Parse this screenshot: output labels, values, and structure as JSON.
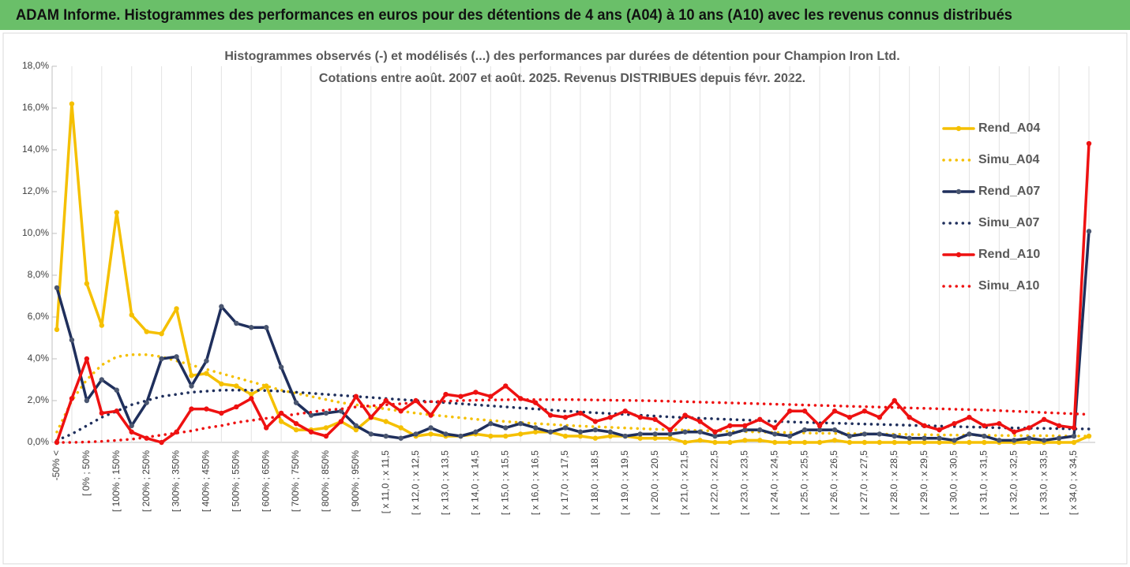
{
  "header": {
    "title": "ADAM Informe. Histogrammes des performances en euros pour des détentions de 4 ans (A04) à 10 ans (A10) avec les revenus connus distribués"
  },
  "chart_data": {
    "type": "line",
    "title": "Histogrammes observés (-) et modélisés (...) des performances par durées de détention pour Champion Iron Ltd.",
    "subtitle": "Cotations entre août. 2007 et août. 2025. Revenus DISTRIBUES depuis févr. 2022.",
    "categories": [
      "-50% <",
      null,
      "[ 0% ; 50%",
      null,
      "[ 100% ; 150%",
      null,
      "[ 200% ; 250%",
      null,
      "[ 300% ; 350%",
      null,
      "[ 400% ; 450%",
      null,
      "[ 500% ; 550%",
      null,
      "[ 600% ; 650%",
      null,
      "[ 700% ; 750%",
      null,
      "[ 800% ; 850%",
      null,
      "[ 900% ; 950%",
      null,
      "[ x 11,0 ; x 11,5",
      null,
      "[ x 12,0 ; x 12,5",
      null,
      "[ x 13,0 ; x 13,5",
      null,
      "[ x 14,0 ; x 14,5",
      null,
      "[ x 15,0 ; x 15,5",
      null,
      "[ x 16,0 ; x 16,5",
      null,
      "[ x 17,0 ; x 17,5",
      null,
      "[ x 18,0 ; x 18,5",
      null,
      "[ x 19,0 ; x 19,5",
      null,
      "[ x 20,0 ; x 20,5",
      null,
      "[ x 21,0 ; x 21,5",
      null,
      "[ x 22,0 ; x 22,5",
      null,
      "[ x 23,0 ; x 23,5",
      null,
      "[ x 24,0 ; x 24,5",
      null,
      "[ x 25,0 ; x 25,5",
      null,
      "[ x 26,0 ; x 26,5",
      null,
      "[ x 27,0 ; x 27,5",
      null,
      "[ x 28,0 ; x 28,5",
      null,
      "[ x 29,0 ; x 29,5",
      null,
      "[ x 30,0 ; x 30,5",
      null,
      "[ x 31,0 ; x 31,5",
      null,
      "[ x 32,0 ; x 32,5",
      null,
      "[ x 33,0 ; x 33,5",
      null,
      "[ x 34,0 ; x 34,5",
      null
    ],
    "series": [
      {
        "name": "Rend_A04",
        "color": "#f5c000",
        "style": "solid",
        "values": [
          5.4,
          16.2,
          7.6,
          5.6,
          11.0,
          6.1,
          5.3,
          5.2,
          6.4,
          3.2,
          3.3,
          2.8,
          2.7,
          2.3,
          2.7,
          1.0,
          0.6,
          0.6,
          0.7,
          1.0,
          0.6,
          1.2,
          1.0,
          0.7,
          0.3,
          0.4,
          0.3,
          0.3,
          0.4,
          0.3,
          0.3,
          0.4,
          0.5,
          0.5,
          0.3,
          0.3,
          0.2,
          0.3,
          0.3,
          0.2,
          0.2,
          0.2,
          0.0,
          0.1,
          0.0,
          0.0,
          0.1,
          0.1,
          0.0,
          0.0,
          0.0,
          0.0,
          0.1,
          0.0,
          0.0,
          0.0,
          0.0,
          0.0,
          0.0,
          0.0,
          0.0,
          0.0,
          0.0,
          0.0,
          0.0,
          0.0,
          0.0,
          0.0,
          0.0,
          0.3
        ]
      },
      {
        "name": "Simu_A04",
        "color": "#f5c000",
        "style": "dotted",
        "values": [
          0.5,
          2.0,
          3.0,
          3.7,
          4.1,
          4.2,
          4.2,
          4.1,
          3.9,
          3.7,
          3.5,
          3.3,
          3.1,
          2.9,
          2.7,
          2.5,
          2.35,
          2.2,
          2.05,
          1.9,
          1.8,
          1.7,
          1.6,
          1.5,
          1.4,
          1.32,
          1.25,
          1.18,
          1.11,
          1.05,
          1.0,
          0.95,
          0.9,
          0.86,
          0.82,
          0.78,
          0.75,
          0.72,
          0.69,
          0.66,
          0.63,
          0.61,
          0.59,
          0.57,
          0.55,
          0.53,
          0.51,
          0.5,
          0.48,
          0.47,
          0.45,
          0.44,
          0.43,
          0.42,
          0.41,
          0.4,
          0.39,
          0.38,
          0.37,
          0.36,
          0.35,
          0.35,
          0.34,
          0.33,
          0.33,
          0.32,
          0.32,
          0.31,
          0.3,
          0.3
        ]
      },
      {
        "name": "Rend_A07",
        "color": "#1f2f5c",
        "style": "solid",
        "values": [
          7.4,
          4.9,
          2.0,
          3.0,
          2.5,
          0.8,
          1.9,
          4.0,
          4.1,
          2.7,
          3.9,
          6.5,
          5.7,
          5.5,
          5.5,
          3.6,
          1.9,
          1.3,
          1.4,
          1.5,
          0.8,
          0.4,
          0.3,
          0.2,
          0.4,
          0.7,
          0.4,
          0.3,
          0.5,
          0.9,
          0.7,
          0.9,
          0.7,
          0.5,
          0.7,
          0.5,
          0.6,
          0.5,
          0.3,
          0.4,
          0.4,
          0.4,
          0.5,
          0.5,
          0.3,
          0.4,
          0.6,
          0.6,
          0.4,
          0.3,
          0.6,
          0.6,
          0.6,
          0.3,
          0.4,
          0.4,
          0.3,
          0.2,
          0.2,
          0.2,
          0.1,
          0.4,
          0.3,
          0.1,
          0.1,
          0.2,
          0.1,
          0.2,
          0.3,
          10.1
        ]
      },
      {
        "name": "Simu_A07",
        "color": "#1f2f5c",
        "style": "dotted",
        "values": [
          0.1,
          0.4,
          0.8,
          1.2,
          1.5,
          1.8,
          2.0,
          2.2,
          2.3,
          2.4,
          2.45,
          2.5,
          2.5,
          2.5,
          2.48,
          2.45,
          2.4,
          2.35,
          2.3,
          2.25,
          2.2,
          2.15,
          2.1,
          2.05,
          2.0,
          1.95,
          1.9,
          1.85,
          1.8,
          1.75,
          1.7,
          1.65,
          1.6,
          1.55,
          1.5,
          1.46,
          1.42,
          1.38,
          1.34,
          1.3,
          1.26,
          1.22,
          1.19,
          1.16,
          1.13,
          1.1,
          1.07,
          1.04,
          1.01,
          0.98,
          0.96,
          0.94,
          0.92,
          0.9,
          0.88,
          0.86,
          0.84,
          0.82,
          0.8,
          0.78,
          0.76,
          0.74,
          0.72,
          0.7,
          0.69,
          0.68,
          0.67,
          0.66,
          0.65,
          0.64
        ]
      },
      {
        "name": "Rend_A10",
        "color": "#ee1111",
        "style": "solid",
        "values": [
          0.0,
          2.1,
          4.0,
          1.4,
          1.5,
          0.5,
          0.2,
          0.0,
          0.5,
          1.6,
          1.6,
          1.4,
          1.7,
          2.1,
          0.7,
          1.4,
          0.9,
          0.5,
          0.3,
          1.0,
          2.2,
          1.2,
          2.0,
          1.5,
          2.0,
          1.3,
          2.3,
          2.2,
          2.4,
          2.2,
          2.7,
          2.1,
          1.9,
          1.3,
          1.2,
          1.4,
          1.0,
          1.2,
          1.5,
          1.2,
          1.1,
          0.6,
          1.3,
          1.0,
          0.5,
          0.8,
          0.8,
          1.1,
          0.7,
          1.5,
          1.5,
          0.8,
          1.5,
          1.2,
          1.5,
          1.2,
          2.0,
          1.2,
          0.8,
          0.6,
          0.9,
          1.2,
          0.8,
          0.9,
          0.5,
          0.7,
          1.1,
          0.8,
          0.7,
          14.3
        ]
      },
      {
        "name": "Simu_A10",
        "color": "#ee1111",
        "style": "dotted",
        "values": [
          0.0,
          0.0,
          0.02,
          0.05,
          0.1,
          0.15,
          0.25,
          0.35,
          0.45,
          0.55,
          0.7,
          0.8,
          0.95,
          1.05,
          1.15,
          1.25,
          1.35,
          1.45,
          1.55,
          1.6,
          1.7,
          1.75,
          1.8,
          1.85,
          1.9,
          1.95,
          1.97,
          2.0,
          2.02,
          2.03,
          2.04,
          2.05,
          2.05,
          2.05,
          2.05,
          2.04,
          2.03,
          2.02,
          2.01,
          2.0,
          1.99,
          1.97,
          1.95,
          1.93,
          1.91,
          1.89,
          1.87,
          1.85,
          1.83,
          1.81,
          1.79,
          1.77,
          1.75,
          1.73,
          1.71,
          1.69,
          1.67,
          1.65,
          1.63,
          1.61,
          1.59,
          1.57,
          1.55,
          1.52,
          1.49,
          1.46,
          1.43,
          1.4,
          1.37,
          1.34
        ]
      }
    ],
    "ylim": [
      0,
      18
    ],
    "yticks": [
      {
        "value": 0,
        "label": "0,0%"
      },
      {
        "value": 2,
        "label": "2,0%"
      },
      {
        "value": 4,
        "label": "4,0%"
      },
      {
        "value": 6,
        "label": "6,0%"
      },
      {
        "value": 8,
        "label": "8,0%"
      },
      {
        "value": 10,
        "label": "10,0%"
      },
      {
        "value": 12,
        "label": "12,0%"
      },
      {
        "value": 14,
        "label": "14,0%"
      },
      {
        "value": 16,
        "label": "16,0%"
      },
      {
        "value": 18,
        "label": "18,0%"
      }
    ],
    "legend": "right"
  }
}
